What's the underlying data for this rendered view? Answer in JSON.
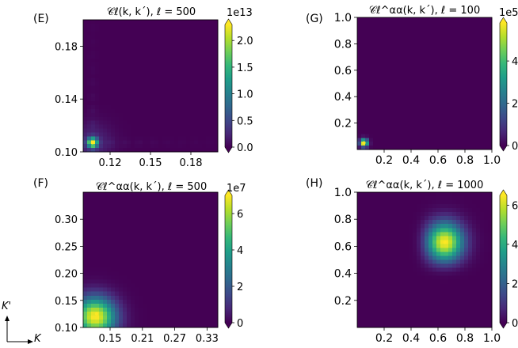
{
  "colors": {
    "viridis": [
      "#440154",
      "#482878",
      "#3e4989",
      "#31688e",
      "#26828e",
      "#1f9e89",
      "#35b779",
      "#6ece58",
      "#b5de2b",
      "#fde725"
    ]
  },
  "axis_note": {
    "y_label": "K'",
    "x_label": "K"
  },
  "chart_data": [
    {
      "panel": "(E)",
      "type": "heatmap",
      "title": "𝒞ℓ(k, k´), ℓ = 500",
      "xlim": [
        0.1,
        0.2
      ],
      "ylim": [
        0.1,
        0.2
      ],
      "xticks": [
        0.12,
        0.15,
        0.18
      ],
      "xtick_labels": [
        "0.12",
        "0.15",
        "0.18"
      ],
      "yticks": [
        0.1,
        0.14,
        0.18
      ],
      "ytick_labels": [
        "0.10",
        "0.14",
        "0.18"
      ],
      "colorbar": {
        "min": 0.0,
        "max": 2.3,
        "ticks": [
          0.0,
          0.5,
          1.0,
          1.5,
          2.0
        ],
        "tick_labels": [
          "0.0",
          "0.5",
          "1.0",
          "1.5",
          "2.0"
        ],
        "exponent_label": "1e13",
        "extend": "both"
      },
      "peak": {
        "x": 0.107,
        "y": 0.107,
        "value": 2.3
      }
    },
    {
      "panel": "(G)",
      "type": "heatmap",
      "title": "𝒞ℓ^αα(k, k´), ℓ = 100",
      "xlim": [
        0.0,
        1.0
      ],
      "ylim": [
        0.0,
        1.0
      ],
      "xticks": [
        0.2,
        0.4,
        0.6,
        0.8,
        1.0
      ],
      "xtick_labels": [
        "0.2",
        "0.4",
        "0.6",
        "0.8",
        "1.0"
      ],
      "yticks": [
        0.2,
        0.4,
        0.6,
        0.8,
        1.0
      ],
      "ytick_labels": [
        "0.2",
        "0.4",
        "0.6",
        "0.8",
        "1.0"
      ],
      "colorbar": {
        "min": 0,
        "max": 5.8,
        "ticks": [
          0,
          2,
          4
        ],
        "tick_labels": [
          "0",
          "2",
          "4"
        ],
        "exponent_label": "1e5",
        "extend": "both"
      },
      "peak": {
        "x": 0.05,
        "y": 0.05,
        "value": 5.8
      }
    },
    {
      "panel": "(F)",
      "type": "heatmap",
      "title": "𝒞ℓ^αα(k, k´), ℓ = 500",
      "xlim": [
        0.1,
        0.35
      ],
      "ylim": [
        0.1,
        0.35
      ],
      "xticks": [
        0.15,
        0.21,
        0.27,
        0.33
      ],
      "xtick_labels": [
        "0.15",
        "0.21",
        "0.27",
        "0.33"
      ],
      "yticks": [
        0.1,
        0.15,
        0.2,
        0.25,
        0.3
      ],
      "ytick_labels": [
        "0.10",
        "0.15",
        "0.20",
        "0.25",
        "0.30"
      ],
      "colorbar": {
        "min": 0,
        "max": 7.0,
        "ticks": [
          0,
          2,
          4,
          6
        ],
        "tick_labels": [
          "0",
          "2",
          "4",
          "6"
        ],
        "exponent_label": "1e7",
        "extend": "both"
      },
      "peak": {
        "x": 0.125,
        "y": 0.125,
        "value": 7.0
      }
    },
    {
      "panel": "(H)",
      "type": "heatmap",
      "title": "𝒞ℓ^αα(k, k´), ℓ = 1000",
      "xlim": [
        0.0,
        1.0
      ],
      "ylim": [
        0.0,
        1.0
      ],
      "xticks": [
        0.2,
        0.4,
        0.6,
        0.8,
        1.0
      ],
      "xtick_labels": [
        "0.2",
        "0.4",
        "0.6",
        "0.8",
        "1.0"
      ],
      "yticks": [
        0.2,
        0.4,
        0.6,
        0.8,
        1.0
      ],
      "ytick_labels": [
        "0.2",
        "0.4",
        "0.6",
        "0.8",
        "1.0"
      ],
      "colorbar": {
        "min": 0,
        "max": 6.5,
        "ticks": [
          0,
          2,
          4,
          6
        ],
        "tick_labels": [
          "0",
          "2",
          "4",
          "6"
        ],
        "exponent_label": "",
        "extend": "both"
      },
      "peak": {
        "x": 0.65,
        "y": 0.63,
        "value": 6.5
      }
    }
  ]
}
